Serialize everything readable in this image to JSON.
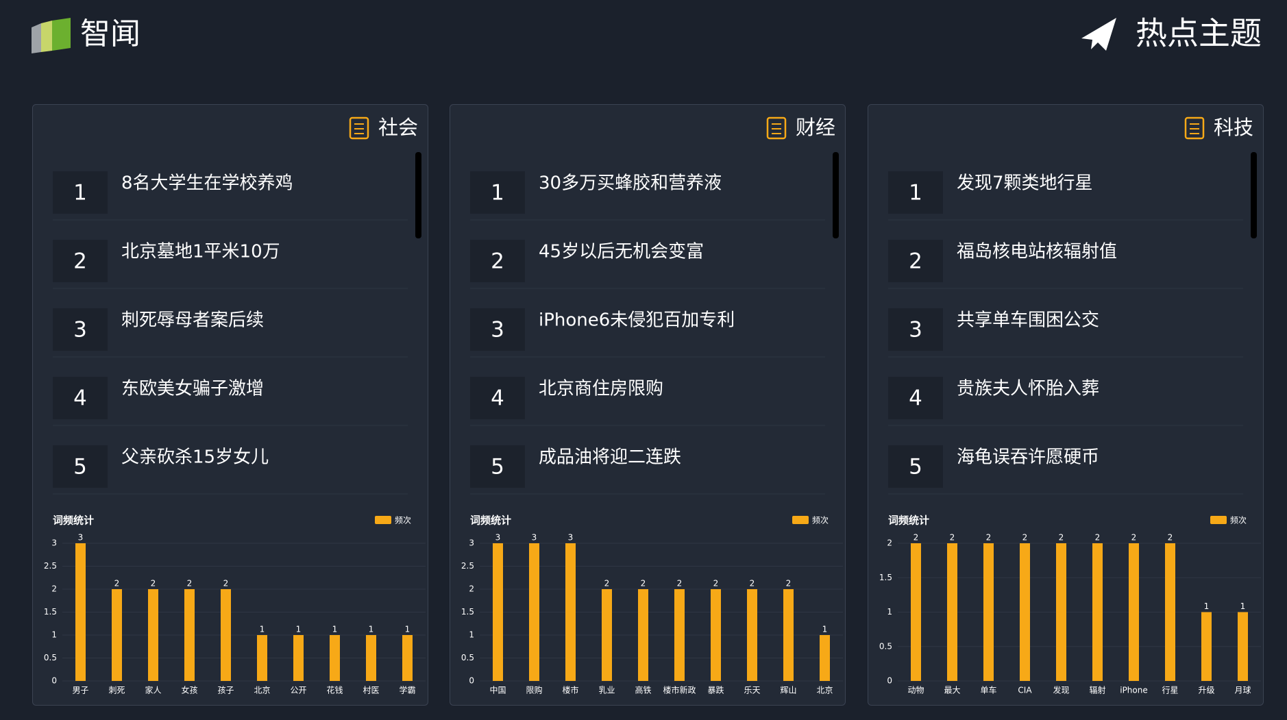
{
  "header": {
    "brand": "智闻",
    "title": "热点主题"
  },
  "panels": [
    {
      "title": "社会",
      "items": [
        {
          "rank": 1,
          "text": "8名大学生在学校养鸡"
        },
        {
          "rank": 2,
          "text": "北京墓地1平米10万"
        },
        {
          "rank": 3,
          "text": "刺死辱母者案后续"
        },
        {
          "rank": 4,
          "text": "东欧美女骗子激增"
        },
        {
          "rank": 5,
          "text": "父亲砍杀15岁女儿"
        }
      ],
      "chart_data": {
        "type": "bar",
        "title": "词频统计",
        "legend": "频次",
        "color": "#f7a917",
        "categories": [
          "男子",
          "刺死",
          "家人",
          "女孩",
          "孩子",
          "北京",
          "公开",
          "花钱",
          "村医",
          "学霸"
        ],
        "values": [
          3,
          2,
          2,
          2,
          2,
          1,
          1,
          1,
          1,
          1
        ],
        "ylim": [
          0,
          3
        ],
        "yticks": [
          0,
          0.5,
          1,
          1.5,
          2,
          2.5,
          3
        ],
        "grid": true
      }
    },
    {
      "title": "财经",
      "items": [
        {
          "rank": 1,
          "text": "30多万买蜂胶和营养液"
        },
        {
          "rank": 2,
          "text": "45岁以后无机会变富"
        },
        {
          "rank": 3,
          "text": "iPhone6未侵犯百加专利"
        },
        {
          "rank": 4,
          "text": "北京商住房限购"
        },
        {
          "rank": 5,
          "text": "成品油将迎二连跌"
        }
      ],
      "chart_data": {
        "type": "bar",
        "title": "词频统计",
        "legend": "频次",
        "color": "#f7a917",
        "categories": [
          "中国",
          "限购",
          "楼市",
          "乳业",
          "高铁",
          "楼市新政",
          "暴跌",
          "乐天",
          "辉山",
          "北京"
        ],
        "values": [
          3,
          3,
          3,
          2,
          2,
          2,
          2,
          2,
          2,
          1
        ],
        "ylim": [
          0,
          3
        ],
        "yticks": [
          0,
          0.5,
          1,
          1.5,
          2,
          2.5,
          3
        ],
        "grid": true
      }
    },
    {
      "title": "科技",
      "items": [
        {
          "rank": 1,
          "text": "发现7颗类地行星"
        },
        {
          "rank": 2,
          "text": "福岛核电站核辐射值"
        },
        {
          "rank": 3,
          "text": "共享单车围困公交"
        },
        {
          "rank": 4,
          "text": "贵族夫人怀胎入葬"
        },
        {
          "rank": 5,
          "text": "海龟误吞许愿硬币"
        }
      ],
      "chart_data": {
        "type": "bar",
        "title": "词频统计",
        "legend": "频次",
        "color": "#f7a917",
        "categories": [
          "动物",
          "最大",
          "单车",
          "CIA",
          "发现",
          "辐射",
          "iPhone",
          "行星",
          "升级",
          "月球"
        ],
        "values": [
          2,
          2,
          2,
          2,
          2,
          2,
          2,
          2,
          1,
          1
        ],
        "ylim": [
          0,
          2
        ],
        "yticks": [
          0,
          0.5,
          1,
          1.5,
          2
        ],
        "grid": true
      }
    }
  ]
}
